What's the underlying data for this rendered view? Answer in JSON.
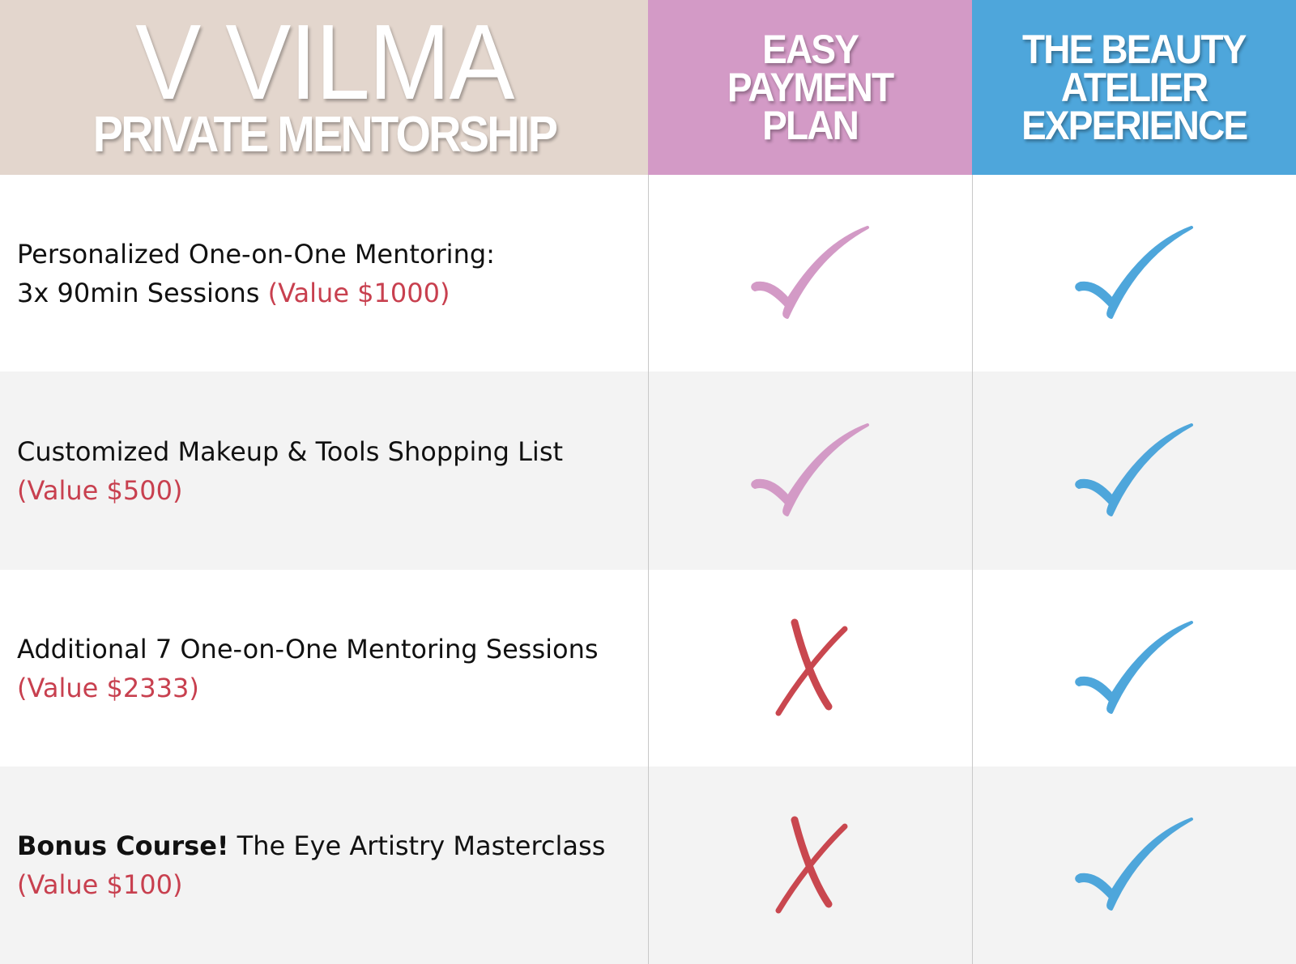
{
  "header": {
    "brand_title": "V VILMA",
    "brand_subtitle": "PRIVATE MENTORSHIP",
    "plans": [
      {
        "lines": [
          "EASY",
          "PAYMENT",
          "PLAN"
        ],
        "color": "#d39ac6"
      },
      {
        "lines": [
          "THE BEAUTY",
          "ATELIER",
          "EXPERIENCE"
        ],
        "color": "#4ea6db"
      }
    ]
  },
  "colors": {
    "brand_bg": "#e3d6cd",
    "value_text": "#c8404f",
    "cross": "#c9474f",
    "alt_row": "#f3f3f3"
  },
  "rows": [
    {
      "bold": "",
      "text": "Personalized One-on-One Mentoring:",
      "text2": "3x 90min  Sessions ",
      "value": "(Value $1000)",
      "plan1": "check-icon",
      "plan2": "check-icon"
    },
    {
      "bold": "",
      "text": "Customized Makeup & Tools Shopping List",
      "text2": "",
      "value": "(Value $500)",
      "plan1": "check-icon",
      "plan2": "check-icon"
    },
    {
      "bold": "",
      "text": "Additional 7 One-on-One Mentoring Sessions",
      "text2": "",
      "value": "(Value $2333)",
      "plan1": "cross-icon",
      "plan2": "check-icon"
    },
    {
      "bold": "Bonus Course!",
      "text": " The Eye Artistry Masterclass",
      "text2": "",
      "value": "(Value $100)",
      "plan1": "cross-icon",
      "plan2": "check-icon"
    }
  ]
}
